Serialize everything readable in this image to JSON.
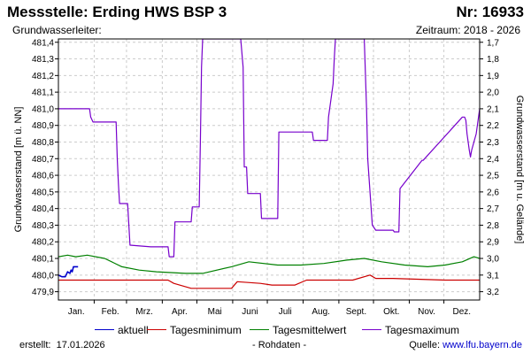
{
  "header": {
    "title": "Messstelle: Erding HWS BSP 3",
    "number": "Nr: 16933",
    "subtitle_left": "Grundwasserleiter:",
    "subtitle_right": "Zeitraum: 2018 - 2026"
  },
  "footer": {
    "created_label": "erstellt:",
    "created_date": "17.01.2026",
    "raw_data": "- Rohdaten -",
    "source_label": "Quelle:",
    "source_link": "www.lfu.bayern.de"
  },
  "chart_data": {
    "type": "line",
    "xlabel": "",
    "ylabel": "Grundwasserstand [m ü. NN]",
    "y2label": "Grundwasserstand [m u. Gelände]",
    "categories": [
      "Jan.",
      "Feb.",
      "Mrz.",
      "Apr.",
      "Mai",
      "Juni",
      "Juli",
      "Aug.",
      "Sept.",
      "Okt.",
      "Nov.",
      "Dez."
    ],
    "xlim": [
      0,
      365
    ],
    "ylim": [
      479.85,
      481.42
    ],
    "yticks": [
      "479,9",
      "480,0",
      "480,1",
      "480,2",
      "480,3",
      "480,4",
      "480,5",
      "480,6",
      "480,7",
      "480,8",
      "480,9",
      "481,0",
      "481,1",
      "481,2",
      "481,3",
      "481,4"
    ],
    "y2ticks": [
      "1,7",
      "1,8",
      "1,9",
      "2,0",
      "2,1",
      "2,2",
      "2,3",
      "2,4",
      "2,5",
      "2,6",
      "2,7",
      "2,8",
      "2,9",
      "3,0",
      "3,1",
      "3,2"
    ],
    "y2_reference": 483.1,
    "grid": true,
    "legend_position": "bottom",
    "series": [
      {
        "name": "aktuell",
        "color": "#0000cc",
        "x": [
          0,
          3,
          6,
          8,
          10,
          11,
          12,
          13,
          15,
          16,
          17
        ],
        "y": [
          480.0,
          479.99,
          479.99,
          480.02,
          480.01,
          480.03,
          480.02,
          480.05,
          480.05,
          480.05,
          480.05
        ]
      },
      {
        "name": "Tagesminimum",
        "color": "#cc0000",
        "x": [
          0,
          95,
          100,
          105,
          115,
          150,
          155,
          175,
          185,
          205,
          215,
          255,
          270,
          275,
          290,
          335,
          365
        ],
        "y": [
          479.97,
          479.97,
          479.95,
          479.94,
          479.92,
          479.92,
          479.96,
          479.95,
          479.94,
          479.94,
          479.97,
          479.97,
          480.0,
          479.98,
          479.98,
          479.97,
          479.97
        ]
      },
      {
        "name": "Tagesmittelwert",
        "color": "#008000",
        "x": [
          0,
          8,
          15,
          25,
          40,
          55,
          70,
          85,
          110,
          125,
          150,
          165,
          190,
          210,
          230,
          250,
          265,
          280,
          300,
          320,
          335,
          350,
          360,
          365
        ],
        "y": [
          480.11,
          480.12,
          480.11,
          480.12,
          480.1,
          480.05,
          480.03,
          480.02,
          480.01,
          480.01,
          480.05,
          480.08,
          480.06,
          480.06,
          480.07,
          480.09,
          480.1,
          480.08,
          480.06,
          480.05,
          480.06,
          480.08,
          480.11,
          480.1
        ]
      },
      {
        "name": "Tagesmaximum",
        "color": "#7700cc",
        "x": [
          0,
          27,
          28,
          30,
          50,
          51,
          52,
          53,
          60,
          62,
          80,
          95,
          96,
          100,
          101,
          115,
          116,
          122,
          123,
          124,
          125,
          127,
          158,
          160,
          161,
          163,
          164,
          175,
          176,
          190,
          191,
          200,
          201,
          220,
          221,
          233,
          234,
          238,
          239,
          240,
          242,
          243,
          265,
          267,
          268,
          270,
          272,
          275,
          290,
          291,
          295,
          296,
          315,
          316,
          350,
          352,
          353,
          354,
          356,
          357,
          358,
          362,
          365
        ],
        "y": [
          481.0,
          481.0,
          480.95,
          480.92,
          480.92,
          480.7,
          480.55,
          480.43,
          480.43,
          480.18,
          480.17,
          480.17,
          480.11,
          480.11,
          480.32,
          480.32,
          480.41,
          480.41,
          480.8,
          481.25,
          481.42,
          481.42,
          481.42,
          481.25,
          480.65,
          480.65,
          480.49,
          480.49,
          480.34,
          480.34,
          480.86,
          480.86,
          480.86,
          480.86,
          480.81,
          480.81,
          480.95,
          481.15,
          481.3,
          481.42,
          481.42,
          481.42,
          481.42,
          481.0,
          480.7,
          480.5,
          480.3,
          480.27,
          480.27,
          480.26,
          480.26,
          480.52,
          480.69,
          480.69,
          480.95,
          480.95,
          480.93,
          480.85,
          480.75,
          480.71,
          480.75,
          480.85,
          481.0
        ]
      }
    ]
  }
}
